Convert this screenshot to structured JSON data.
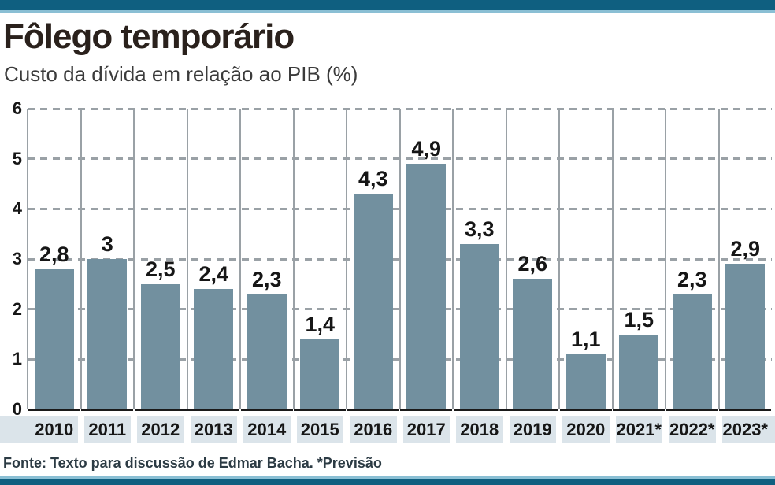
{
  "header": {
    "title": "Fôlego temporário",
    "subtitle": "Custo da dívida em relação ao PIB (%)"
  },
  "chart_data": {
    "type": "bar",
    "title": "Fôlego temporário",
    "subtitle": "Custo da dívida em relação ao PIB (%)",
    "categories": [
      "2010",
      "2011",
      "2012",
      "2013",
      "2014",
      "2015",
      "2016",
      "2017",
      "2018",
      "2019",
      "2020",
      "2021*",
      "2022*",
      "2023*"
    ],
    "values": [
      2.8,
      3,
      2.5,
      2.4,
      2.3,
      1.4,
      4.3,
      4.9,
      3.3,
      2.6,
      1.1,
      1.5,
      2.3,
      2.9
    ],
    "value_labels": [
      "2,8",
      "3",
      "2,5",
      "2,4",
      "2,3",
      "1,4",
      "4,3",
      "4,9",
      "3,3",
      "2,6",
      "1,1",
      "1,5",
      "2,3",
      "2,9"
    ],
    "xlabel": "",
    "ylabel": "",
    "ylim": [
      0,
      6
    ],
    "yticks": [
      0,
      1,
      2,
      3,
      4,
      5,
      6
    ],
    "grid": {
      "horizontal": "dashed",
      "vertical": "solid-column-separators"
    },
    "legend": "none",
    "bar_color": "#72909f",
    "band_color": "#dbe4ea",
    "grid_color": "#9aa1a6",
    "baseline_color": "#1a1a1a",
    "tick_label_color": "#161616"
  },
  "footer": {
    "source": "Fonte: Texto para discussão de Edmar Bacha. *Previsão"
  },
  "colors": {
    "background": "#ffffff",
    "accent_bar": "#0f5f80",
    "accent_line": "#8abfd4",
    "title_text": "#2a211c",
    "subtitle_text": "#3b3b3b",
    "footer_text": "#2c3b44"
  }
}
